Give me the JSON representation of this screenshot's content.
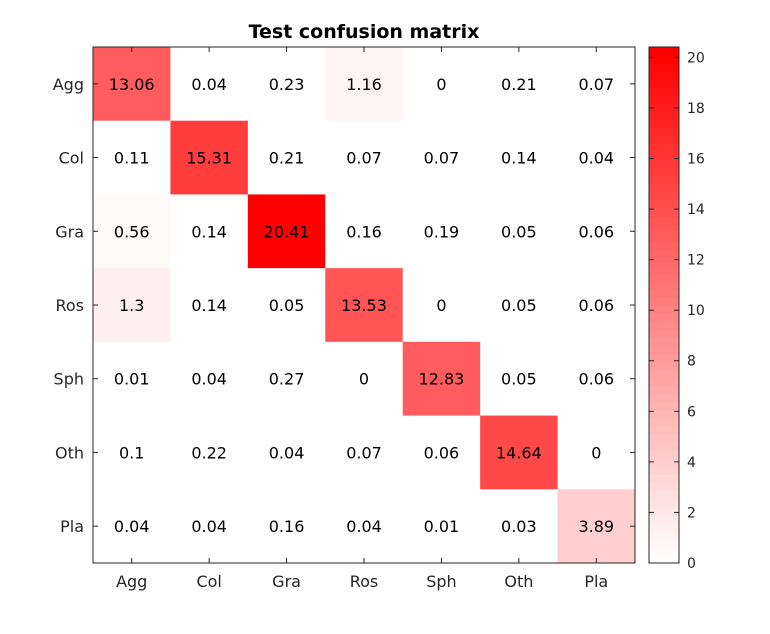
{
  "chart_data": {
    "type": "heatmap",
    "title": "Test confusion matrix",
    "row_labels": [
      "Agg",
      "Col",
      "Gra",
      "Ros",
      "Sph",
      "Oth",
      "Pla"
    ],
    "col_labels": [
      "Agg",
      "Col",
      "Gra",
      "Ros",
      "Sph",
      "Oth",
      "Pla"
    ],
    "values": [
      [
        13.06,
        0.04,
        0.23,
        1.16,
        0,
        0.21,
        0.07
      ],
      [
        0.11,
        15.31,
        0.21,
        0.07,
        0.07,
        0.14,
        0.04
      ],
      [
        0.56,
        0.14,
        20.41,
        0.16,
        0.19,
        0.05,
        0.06
      ],
      [
        1.3,
        0.14,
        0.05,
        13.53,
        0,
        0.05,
        0.06
      ],
      [
        0.01,
        0.04,
        0.27,
        0,
        12.83,
        0.05,
        0.06
      ],
      [
        0.1,
        0.22,
        0.04,
        0.07,
        0.06,
        14.64,
        0
      ],
      [
        0.04,
        0.04,
        0.16,
        0.04,
        0.01,
        0.03,
        3.89
      ]
    ],
    "colorbar": {
      "range": [
        0,
        20.41
      ],
      "ticks": [
        0,
        2,
        4,
        6,
        8,
        10,
        12,
        14,
        16,
        18,
        20
      ],
      "color_low": "#ffffff",
      "color_high": "#ff0000"
    },
    "grid": false
  }
}
